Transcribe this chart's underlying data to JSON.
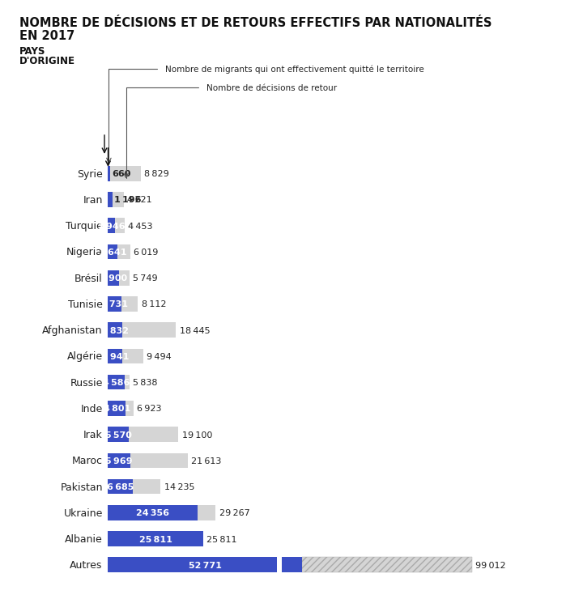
{
  "title_line1": "NOMBRE DE DÉCISIONS ET DE RETOURS EFFECTIFS PAR NATIONALITÉS",
  "title_line2": "EN 2017",
  "col_label": "PAYS\nD'ORIGINE",
  "legend1": "Nombre de migrants qui ont effectivement quitté le territoire",
  "legend2": "Nombre de décisions de retour",
  "countries": [
    "Syrie",
    "Iran",
    "Turquie",
    "Nigeria",
    "Brésil",
    "Tunisie",
    "Afghanistan",
    "Algérie",
    "Russie",
    "Inde",
    "Irak",
    "Maroc",
    "Pakistan",
    "Ukraine",
    "Albanie",
    "Autres"
  ],
  "actual_returns": [
    660,
    1196,
    1946,
    2641,
    2900,
    3731,
    3832,
    3941,
    4586,
    4801,
    5570,
    5969,
    6685,
    24356,
    25811,
    52771
  ],
  "decisions": [
    8829,
    4221,
    4453,
    6019,
    5749,
    8112,
    18445,
    9494,
    5838,
    6923,
    19100,
    21613,
    14235,
    29267,
    25811,
    99012
  ],
  "bar_color_blue": "#3A4EC4",
  "bar_color_gray": "#D5D5D5",
  "text_color": "#222222",
  "bg_color": "#FFFFFF",
  "bar_height": 0.58,
  "font_size_title": 10.5,
  "font_size_labels": 9,
  "font_size_values": 8
}
